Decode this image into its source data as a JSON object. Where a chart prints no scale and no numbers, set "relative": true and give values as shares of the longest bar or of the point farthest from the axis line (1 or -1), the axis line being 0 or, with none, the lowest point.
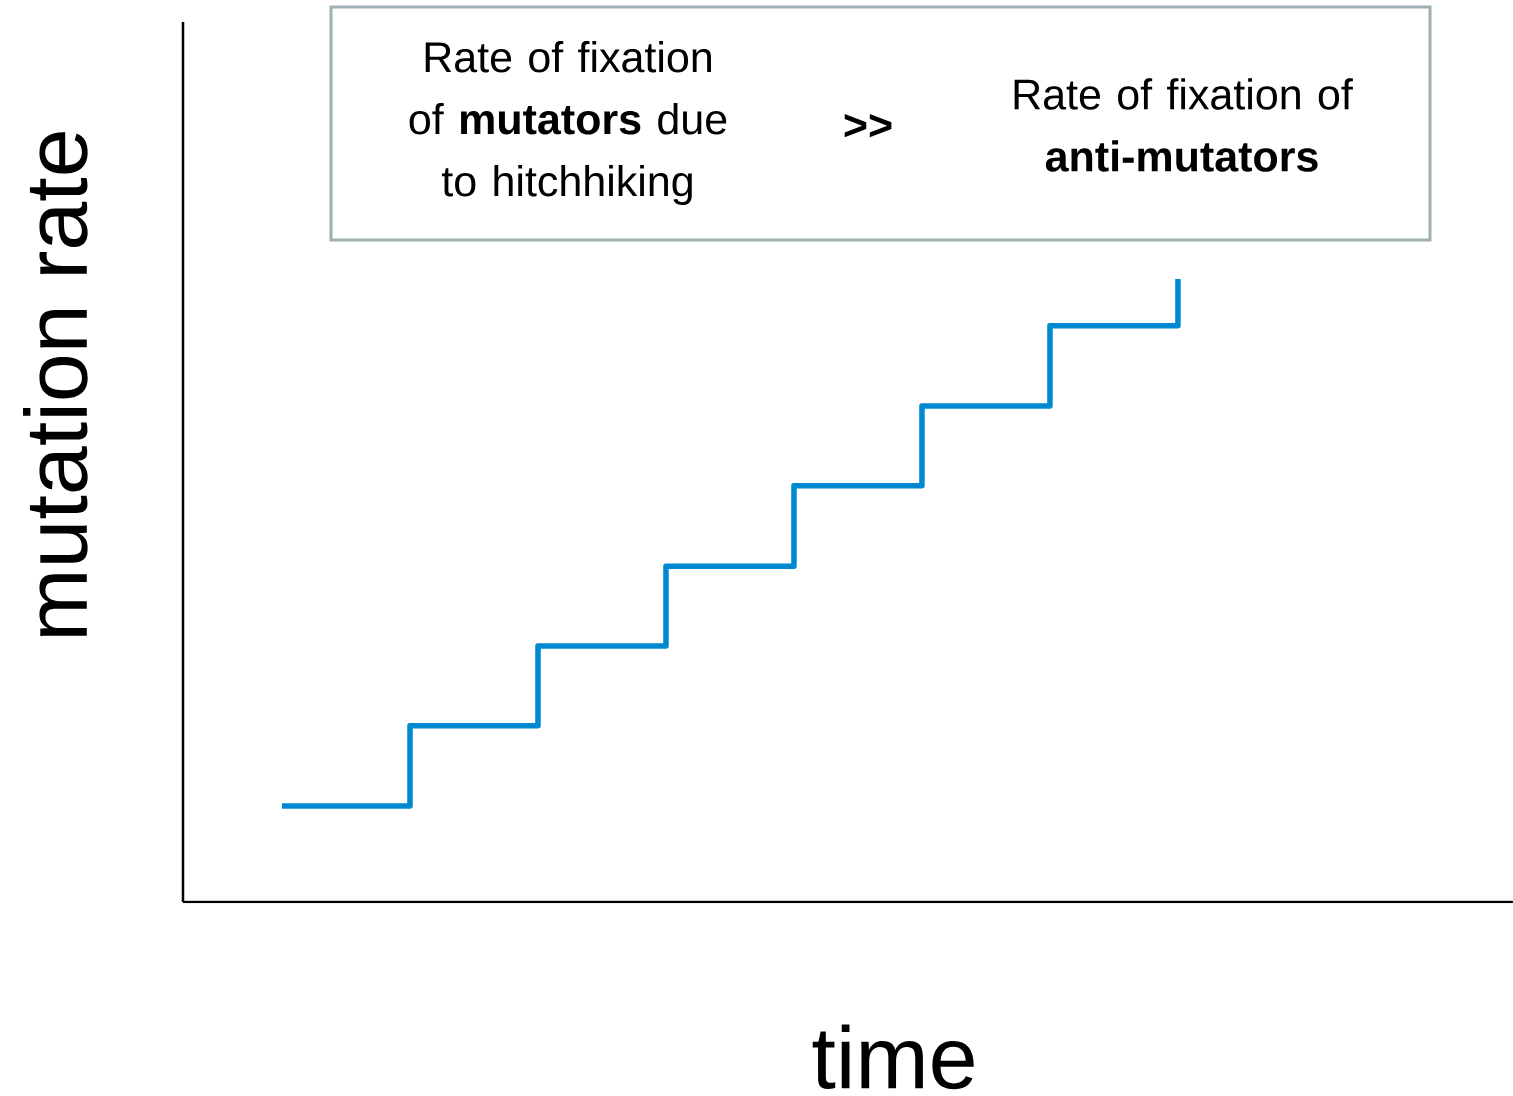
{
  "chart_data": {
    "type": "step",
    "relative": true,
    "xlabel": "time",
    "ylabel": "mutation rate",
    "categories": [
      null,
      null,
      null,
      null,
      null,
      null,
      null,
      null
    ],
    "series": [
      {
        "color": "#0088d1",
        "values": [
          0.154,
          0.283,
          0.411,
          0.539,
          0.668,
          0.796,
          0.925,
          1
        ]
      }
    ],
    "annotations": [
      "Rate of fixation of **mutators** due to hitchhiking",
      "**>>**",
      "Rate of fixation of **anti-mutators**"
    ],
    "marker": "none",
    "line_style": "solid"
  }
}
